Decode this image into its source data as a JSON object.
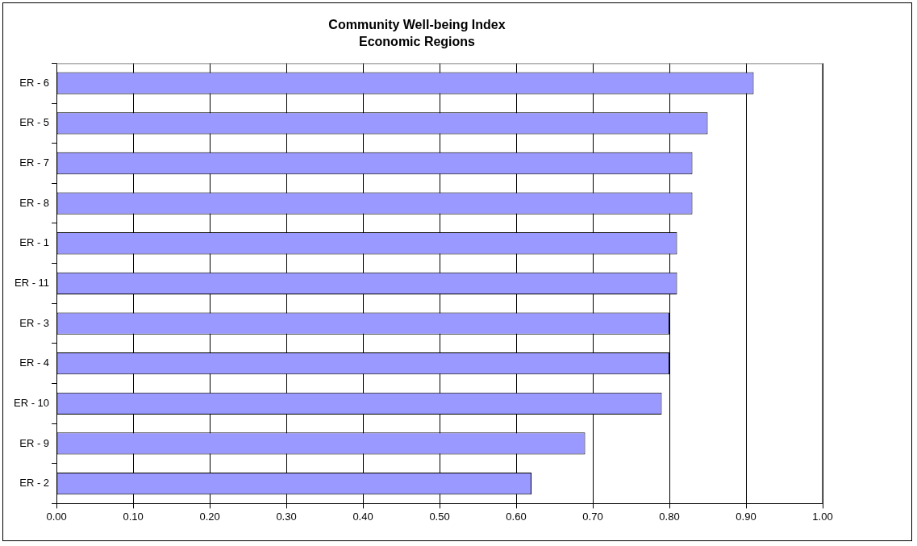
{
  "chart_data": {
    "type": "bar",
    "orientation": "horizontal",
    "title": "Community Well-being Index",
    "subtitle": "Economic Regions",
    "categories": [
      "ER - 6",
      "ER - 5",
      "ER - 7",
      "ER - 8",
      "ER - 1",
      "ER - 11",
      "ER - 3",
      "ER - 4",
      "ER - 10",
      "ER - 9",
      "ER - 2"
    ],
    "values": [
      0.91,
      0.85,
      0.83,
      0.83,
      0.81,
      0.81,
      0.8,
      0.8,
      0.79,
      0.69,
      0.62
    ],
    "color": "#9999ff",
    "xlim": [
      0,
      1
    ],
    "xticks": [
      {
        "value": 0,
        "label": "0.00"
      },
      {
        "value": 0.1,
        "label": "0.10"
      },
      {
        "value": 0.2,
        "label": "0.20"
      },
      {
        "value": 0.3,
        "label": "0.30"
      },
      {
        "value": 0.4,
        "label": "0.40"
      },
      {
        "value": 0.5,
        "label": "0.50"
      },
      {
        "value": 0.6,
        "label": "0.60"
      },
      {
        "value": 0.7,
        "label": "0.70"
      },
      {
        "value": 0.8,
        "label": "0.80"
      },
      {
        "value": 0.9,
        "label": "0.90"
      },
      {
        "value": 1,
        "label": "1.00"
      }
    ],
    "grid": "x",
    "legend": false
  }
}
